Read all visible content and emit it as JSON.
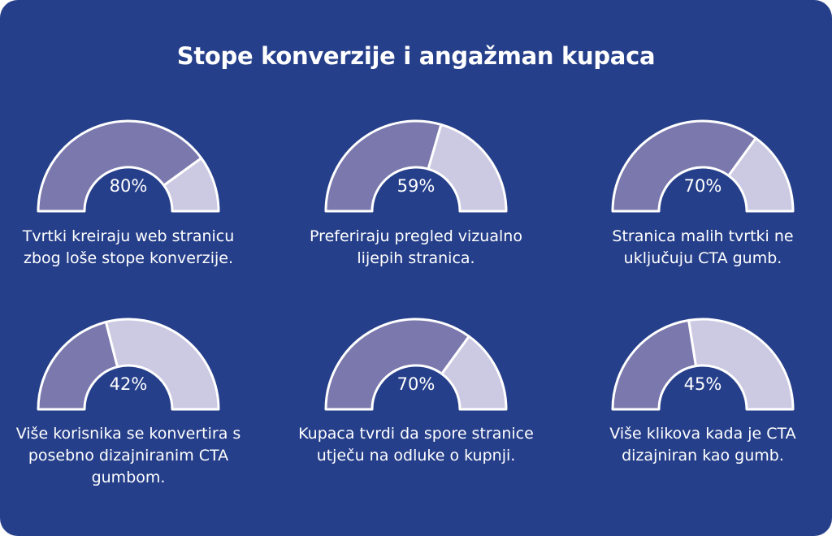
{
  "title": "Stope konverzije i angažman kupaca",
  "colors": {
    "background": "#263f8a",
    "filled": "#7a78ad",
    "remaining": "#ccc9e2",
    "stroke": "#ffffff"
  },
  "chart_data": {
    "type": "gauge",
    "title": "Stope konverzije i angažman kupaca",
    "unit": "%",
    "max": 100,
    "gauges": [
      {
        "value": 80,
        "label": "80%",
        "description": "Tvrtki kreiraju web stranicu zbog loše stope konverzije."
      },
      {
        "value": 59,
        "label": "59%",
        "description": "Preferiraju pregled vizualno lijepih stranica."
      },
      {
        "value": 70,
        "label": "70%",
        "description": "Stranica malih tvrtki ne uključuju CTA gumb."
      },
      {
        "value": 42,
        "label": "42%",
        "description": "Više korisnika se konvertira s posebno dizajniranim CTA gumbom."
      },
      {
        "value": 70,
        "label": "70%",
        "description": "Kupaca tvrdi da spore stranice utječu na odluke o kupnji."
      },
      {
        "value": 45,
        "label": "45%",
        "description": "Više klikova kada je CTA dizajniran kao gumb."
      }
    ]
  }
}
